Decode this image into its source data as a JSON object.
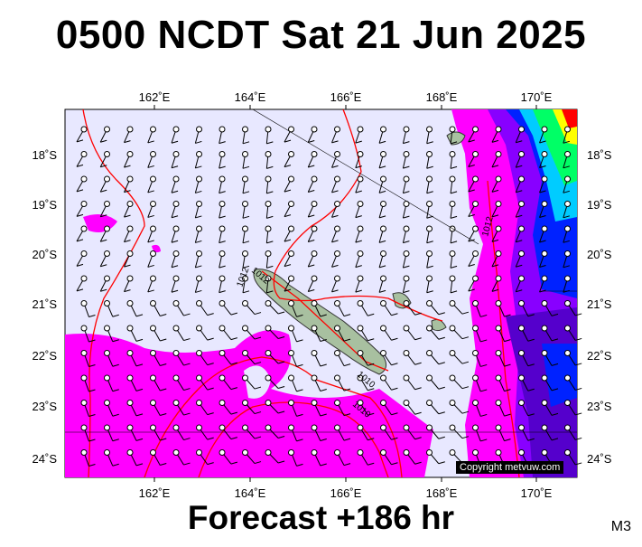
{
  "header": {
    "title": "0500 NCDT Sat 21 Jun 2025"
  },
  "footer": {
    "forecast": "Forecast +186 hr",
    "model": "M3"
  },
  "map": {
    "lon_ticks": [
      "162˚E",
      "164˚E",
      "166˚E",
      "168˚E",
      "170˚E"
    ],
    "lat_ticks": [
      "18˚S",
      "19˚S",
      "20˚S",
      "21˚S",
      "22˚S",
      "23˚S",
      "24˚S"
    ],
    "isobar_labels": [
      "1012",
      "1012",
      "1012",
      "1010",
      "1010"
    ],
    "copyright": "Copyright metvuw.com",
    "colors": {
      "background": "#e8e8ff",
      "rain_light": "#ff00ff",
      "isobar": "#ff0000",
      "land": "#a8c0a0"
    }
  }
}
